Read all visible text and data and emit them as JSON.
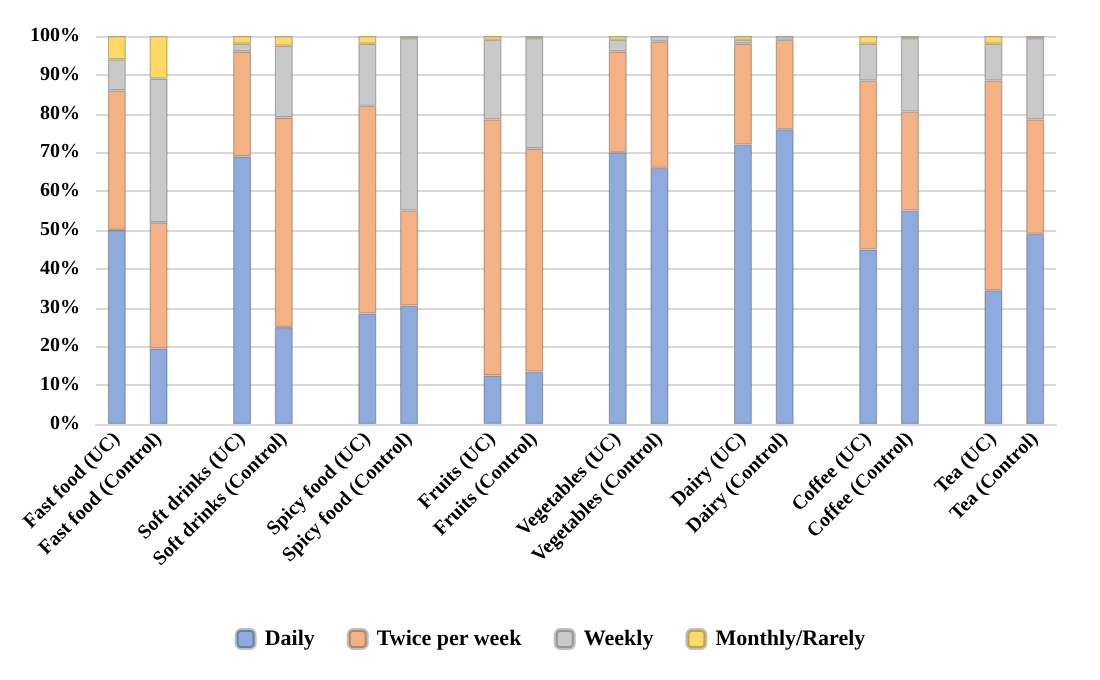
{
  "chart_data": {
    "type": "bar",
    "stacked": true,
    "categories": [
      "Fast food (UC)",
      "Fast food (Control)",
      null,
      "Soft drinks (UC)",
      "Soft drinks (Control)",
      null,
      "Spicy food (UC)",
      "Spicy food (Control)",
      null,
      "Fruits (UC)",
      "Fruits (Control)",
      null,
      "Vegetables (UC)",
      "Vegetables (Control)",
      null,
      "Dairy (UC)",
      "Dairy (Control)",
      null,
      "Coffee (UC)",
      "Coffee (Control)",
      null,
      "Tea (UC)",
      "Tea (Control)"
    ],
    "series": [
      {
        "name": "Daily",
        "color": "#8faadc",
        "values": [
          50,
          19.5,
          null,
          69,
          25,
          null,
          28.5,
          30.5,
          null,
          12.5,
          13.5,
          null,
          70,
          66,
          null,
          72,
          76,
          null,
          45,
          55,
          null,
          34.5,
          49
        ]
      },
      {
        "name": "Twice per week",
        "color": "#f4b183",
        "values": [
          36,
          32.5,
          null,
          27,
          54,
          null,
          53.5,
          24.5,
          null,
          66,
          57.5,
          null,
          26,
          32.5,
          null,
          26,
          23,
          null,
          43.5,
          25.5,
          null,
          54,
          29.5
        ]
      },
      {
        "name": "Weekly",
        "color": "#c9c9c9",
        "values": [
          8,
          37,
          null,
          2,
          18.5,
          null,
          16,
          44.5,
          null,
          20.5,
          28.5,
          null,
          3,
          1.5,
          null,
          1,
          1,
          null,
          9.5,
          19,
          null,
          9.5,
          21
        ]
      },
      {
        "name": "Monthly/Rarely",
        "color": "#ffd966",
        "values": [
          6,
          11,
          null,
          2,
          2.5,
          null,
          2,
          0.5,
          null,
          1,
          0.5,
          null,
          1,
          null,
          null,
          1,
          null,
          null,
          2,
          0.5,
          null,
          2,
          0.5
        ]
      }
    ],
    "ylim": [
      0,
      100
    ],
    "yticks": [
      {
        "value": 0,
        "label": "0%"
      },
      {
        "value": 10,
        "label": "10%"
      },
      {
        "value": 20,
        "label": "20%"
      },
      {
        "value": 30,
        "label": "30%"
      },
      {
        "value": 40,
        "label": "40%"
      },
      {
        "value": 50,
        "label": "50%"
      },
      {
        "value": 60,
        "label": "60%"
      },
      {
        "value": 70,
        "label": "70%"
      },
      {
        "value": 80,
        "label": "80%"
      },
      {
        "value": 90,
        "label": "90%"
      },
      {
        "value": 100,
        "label": "100%"
      }
    ],
    "grid": "y",
    "legend": "bottom"
  }
}
